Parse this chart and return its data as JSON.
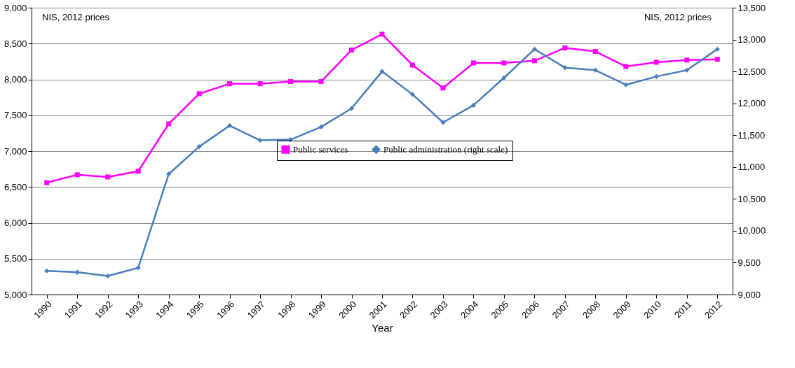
{
  "chart_data": {
    "type": "line",
    "xlabel": "Year",
    "annotations": [
      "NIS, 2012 prices",
      "NIS, 2012 prices"
    ],
    "categories": [
      "1990",
      "1991",
      "1992",
      "1993",
      "1994",
      "1995",
      "1996",
      "1997",
      "1998",
      "1999",
      "2000",
      "2001",
      "2002",
      "2003",
      "2004",
      "2005",
      "2006",
      "2007",
      "2008",
      "2009",
      "2010",
      "2011",
      "2012"
    ],
    "series": [
      {
        "name": "Public services",
        "color": "#ff00ff",
        "marker": "square",
        "values": [
          6560,
          6670,
          6640,
          6720,
          7380,
          7800,
          7940,
          7940,
          7970,
          7970,
          8410,
          8630,
          8200,
          7880,
          8230,
          8230,
          8260,
          8440,
          8390,
          8180,
          8240,
          8270,
          8280
        ]
      },
      {
        "name": "Public administration (right scale)",
        "color": "#4a7ebb",
        "marker": "diamond",
        "axis": "y2",
        "values": [
          9370,
          9350,
          9290,
          9420,
          10890,
          11320,
          11650,
          11420,
          11430,
          11630,
          11920,
          12500,
          12140,
          11700,
          11970,
          12400,
          12850,
          12560,
          12520,
          12290,
          12420,
          12520,
          12850
        ]
      }
    ],
    "ylim": [
      5000,
      9000
    ],
    "yticks": [
      {
        "value": 5000,
        "label": "5,000"
      },
      {
        "value": 5500,
        "label": "5,500"
      },
      {
        "value": 6000,
        "label": "6,000"
      },
      {
        "value": 6500,
        "label": "6,500"
      },
      {
        "value": 7000,
        "label": "7,000"
      },
      {
        "value": 7500,
        "label": "7,500"
      },
      {
        "value": 8000,
        "label": "8,000"
      },
      {
        "value": 8500,
        "label": "8,500"
      },
      {
        "value": 9000,
        "label": "9,000"
      }
    ],
    "y2lim": [
      9000,
      13500
    ],
    "y2ticks": [
      {
        "value": 9000,
        "label": "9,000"
      },
      {
        "value": 9500,
        "label": "9,500"
      },
      {
        "value": 10000,
        "label": "10,000"
      },
      {
        "value": 10500,
        "label": "10,500"
      },
      {
        "value": 11000,
        "label": "11,000"
      },
      {
        "value": 11500,
        "label": "11,500"
      },
      {
        "value": 12000,
        "label": "12,000"
      },
      {
        "value": 12500,
        "label": "12,500"
      },
      {
        "value": 13000,
        "label": "13,000"
      },
      {
        "value": 13500,
        "label": "13,500"
      }
    ],
    "grid": "y",
    "legend": "center",
    "line_style": "solid"
  }
}
